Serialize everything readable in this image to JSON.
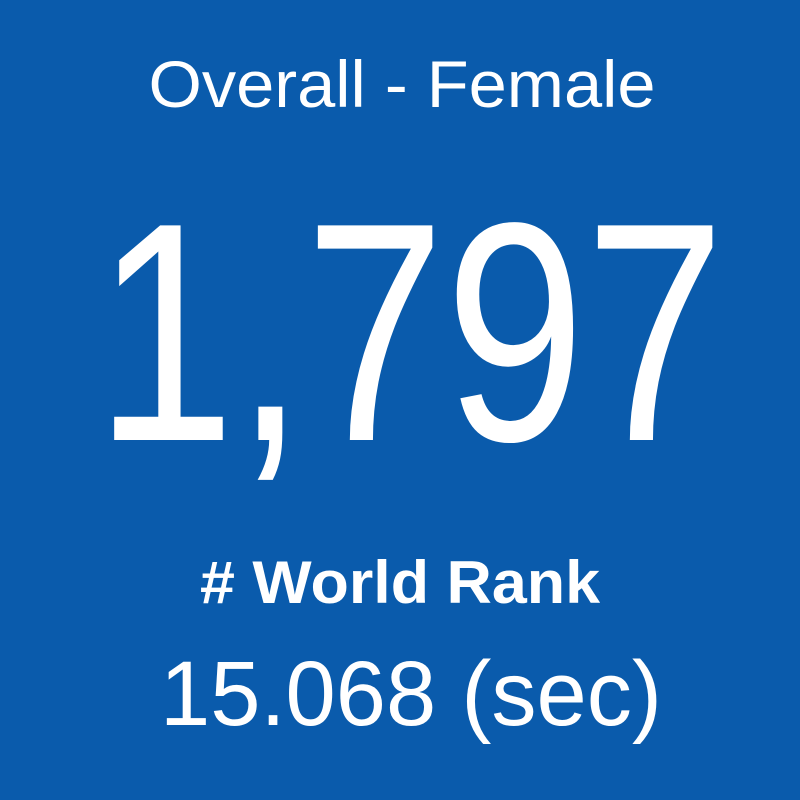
{
  "tile": {
    "title": "Overall - Female",
    "value": "1,797",
    "label": "# World Rank",
    "time": "15.068 (sec)"
  }
}
